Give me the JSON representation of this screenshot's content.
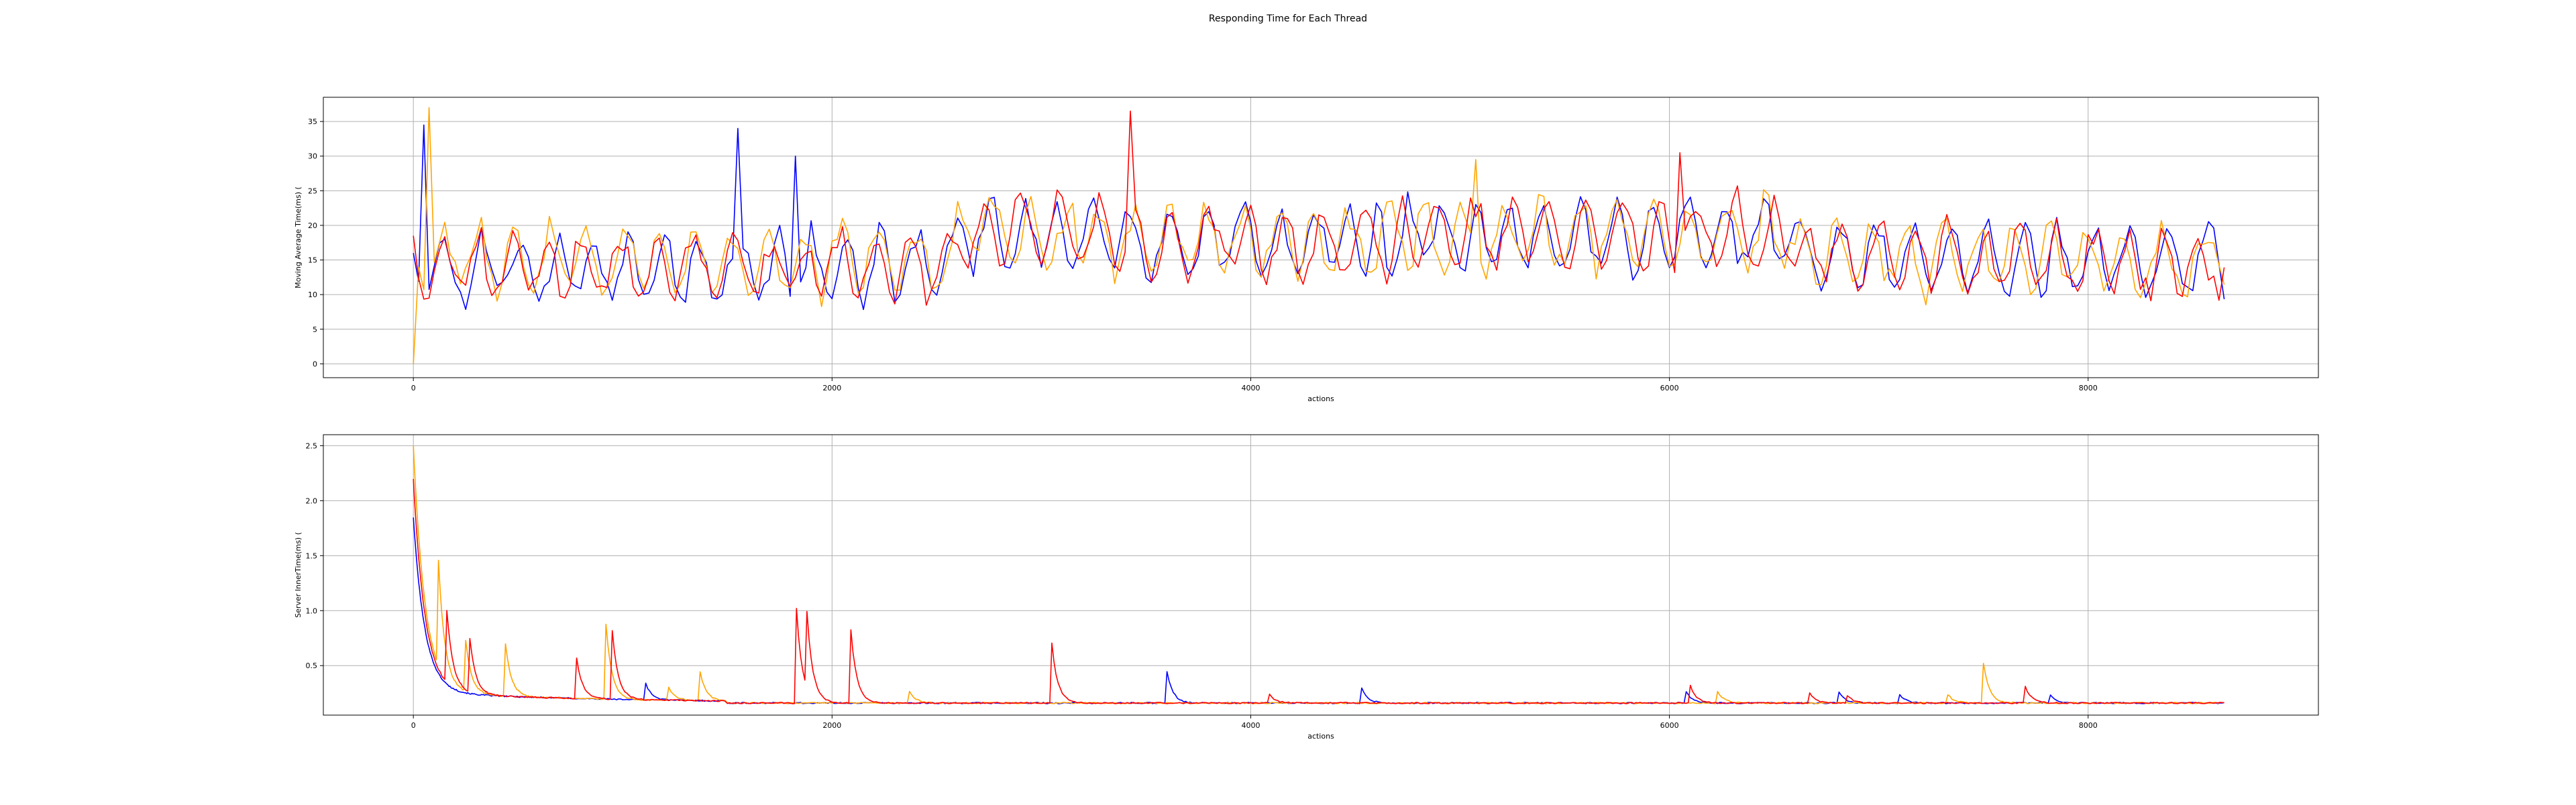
{
  "figure_title": "Responding Time for Each Thread",
  "colors": {
    "series1": "#0000ff",
    "series2": "#ffa500",
    "series3": "#ff0000",
    "grid": "#b0b0b0"
  },
  "chart_data": [
    {
      "type": "line",
      "title": "",
      "xlabel": "actions",
      "ylabel": "Moving Average Time(ms) (",
      "xlim": [
        -430,
        9100
      ],
      "ylim": [
        -2,
        38.5
      ],
      "xticks": [
        0,
        2000,
        4000,
        6000,
        8000
      ],
      "yticks": [
        0,
        5,
        10,
        15,
        20,
        25,
        30,
        35
      ],
      "grid": true,
      "legend": "none",
      "series_colors": [
        "#0000ff",
        "#ffa500",
        "#ff0000"
      ],
      "x_max": 8650,
      "sample_step": 25,
      "peaks": [
        {
          "color": "#0000ff",
          "x": 50,
          "y": 34.5
        },
        {
          "color": "#ffa500",
          "x": 80,
          "y": 37
        },
        {
          "color": "#0000ff",
          "x": 1540,
          "y": 34
        },
        {
          "color": "#0000ff",
          "x": 1830,
          "y": 30
        },
        {
          "color": "#ff0000",
          "x": 3430,
          "y": 36.5
        },
        {
          "color": "#ffa500",
          "x": 5080,
          "y": 29.5
        },
        {
          "color": "#ff0000",
          "x": 6050,
          "y": 30.5
        }
      ]
    },
    {
      "type": "line",
      "title": "",
      "xlabel": "actions",
      "ylabel": "Server InnerTime(ms) (",
      "xlim": [
        -430,
        9100
      ],
      "ylim": [
        0.05,
        2.6
      ],
      "xticks": [
        0,
        2000,
        4000,
        6000,
        8000
      ],
      "yticks": [
        0.5,
        1.0,
        1.5,
        2.0,
        2.5
      ],
      "grid": true,
      "legend": "none",
      "series_colors": [
        "#0000ff",
        "#ffa500",
        "#ff0000"
      ],
      "x_max": 8650,
      "start_values": [
        1.85,
        2.5,
        2.2
      ],
      "baseline": 0.16,
      "spikes": [
        {
          "color": "#ffa500",
          "x": 120,
          "y": 1.2
        },
        {
          "color": "#ff0000",
          "x": 160,
          "y": 0.9
        },
        {
          "color": "#ffa500",
          "x": 250,
          "y": 0.7
        },
        {
          "color": "#ff0000",
          "x": 270,
          "y": 0.72
        },
        {
          "color": "#ffa500",
          "x": 440,
          "y": 0.7
        },
        {
          "color": "#ff0000",
          "x": 780,
          "y": 0.57
        },
        {
          "color": "#ffa500",
          "x": 920,
          "y": 0.88
        },
        {
          "color": "#ff0000",
          "x": 950,
          "y": 0.82
        },
        {
          "color": "#0000ff",
          "x": 1110,
          "y": 0.34
        },
        {
          "color": "#ffa500",
          "x": 1220,
          "y": 0.3
        },
        {
          "color": "#ffa500",
          "x": 1370,
          "y": 0.44
        },
        {
          "color": "#ff0000",
          "x": 1830,
          "y": 1.02
        },
        {
          "color": "#ff0000",
          "x": 1880,
          "y": 0.85
        },
        {
          "color": "#ff0000",
          "x": 2090,
          "y": 0.82
        },
        {
          "color": "#ffa500",
          "x": 2370,
          "y": 0.27
        },
        {
          "color": "#ff0000",
          "x": 3050,
          "y": 0.7
        },
        {
          "color": "#0000ff",
          "x": 3600,
          "y": 0.45
        },
        {
          "color": "#ff0000",
          "x": 4090,
          "y": 0.24
        },
        {
          "color": "#0000ff",
          "x": 4530,
          "y": 0.3
        },
        {
          "color": "#0000ff",
          "x": 6080,
          "y": 0.26
        },
        {
          "color": "#ff0000",
          "x": 6100,
          "y": 0.32
        },
        {
          "color": "#ffa500",
          "x": 6230,
          "y": 0.27
        },
        {
          "color": "#ff0000",
          "x": 6670,
          "y": 0.25
        },
        {
          "color": "#0000ff",
          "x": 6810,
          "y": 0.26
        },
        {
          "color": "#ff0000",
          "x": 6850,
          "y": 0.23
        },
        {
          "color": "#0000ff",
          "x": 7100,
          "y": 0.24
        },
        {
          "color": "#ffa500",
          "x": 7330,
          "y": 0.24
        },
        {
          "color": "#ffa500",
          "x": 7500,
          "y": 0.52
        },
        {
          "color": "#ff0000",
          "x": 7700,
          "y": 0.31
        },
        {
          "color": "#0000ff",
          "x": 7820,
          "y": 0.23
        }
      ]
    }
  ]
}
